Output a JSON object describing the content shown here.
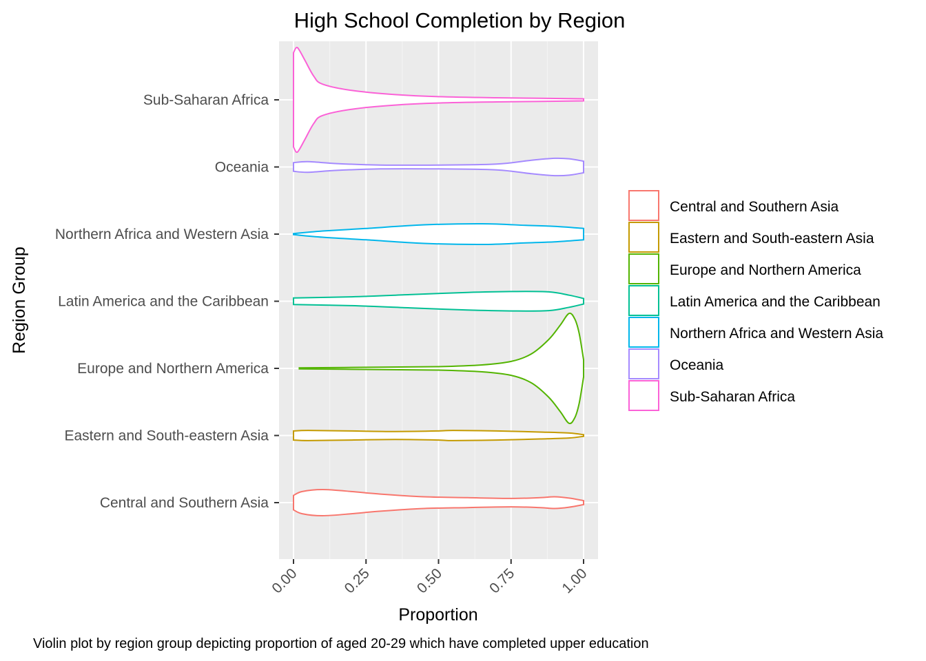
{
  "chart_data": {
    "type": "violin",
    "title": "High School Completion by Region",
    "xlabel": "Proportion",
    "ylabel": "Region Group",
    "caption": "Violin plot by region group depicting proportion of aged 20-29 which have completed upper education",
    "xlim": [
      -0.05,
      1.05
    ],
    "x_ticks": [
      "0.00",
      "0.25",
      "0.50",
      "0.75",
      "1.00"
    ],
    "x_tick_values": [
      0,
      0.25,
      0.5,
      0.75,
      1.0
    ],
    "categories": [
      "Central and Southern Asia",
      "Eastern and South-eastern Asia",
      "Europe and Northern America",
      "Latin America and the Caribbean",
      "Northern Africa and Western Asia",
      "Oceania",
      "Sub-Saharan Africa"
    ],
    "legend_position": "right",
    "grid": true,
    "series": [
      {
        "name": "Central and Southern Asia",
        "color": "#F8766D",
        "points": [
          [
            0.0,
            0.55
          ],
          [
            0.03,
            0.85
          ],
          [
            0.1,
            1.0
          ],
          [
            0.2,
            0.85
          ],
          [
            0.3,
            0.65
          ],
          [
            0.45,
            0.45
          ],
          [
            0.6,
            0.38
          ],
          [
            0.75,
            0.32
          ],
          [
            0.85,
            0.38
          ],
          [
            0.9,
            0.45
          ],
          [
            0.95,
            0.35
          ],
          [
            1.0,
            0.15
          ]
        ]
      },
      {
        "name": "Eastern and South-eastern Asia",
        "color": "#C49A00",
        "points": [
          [
            0.0,
            0.55
          ],
          [
            0.05,
            0.62
          ],
          [
            0.2,
            0.55
          ],
          [
            0.35,
            0.48
          ],
          [
            0.5,
            0.55
          ],
          [
            0.55,
            0.62
          ],
          [
            0.7,
            0.55
          ],
          [
            0.85,
            0.42
          ],
          [
            0.95,
            0.3
          ],
          [
            1.0,
            0.1
          ]
        ]
      },
      {
        "name": "Europe and Northern America",
        "color": "#53B400",
        "points": [
          [
            0.02,
            0.01
          ],
          [
            0.3,
            0.02
          ],
          [
            0.5,
            0.03
          ],
          [
            0.65,
            0.06
          ],
          [
            0.75,
            0.12
          ],
          [
            0.82,
            0.25
          ],
          [
            0.88,
            0.5
          ],
          [
            0.92,
            0.75
          ],
          [
            0.95,
            0.95
          ],
          [
            0.97,
            0.85
          ],
          [
            0.985,
            0.6
          ],
          [
            1.0,
            0.15
          ]
        ]
      },
      {
        "name": "Latin America and the Caribbean",
        "color": "#00C094",
        "points": [
          [
            0.0,
            0.3
          ],
          [
            0.2,
            0.4
          ],
          [
            0.4,
            0.6
          ],
          [
            0.6,
            0.8
          ],
          [
            0.75,
            0.88
          ],
          [
            0.88,
            0.85
          ],
          [
            0.95,
            0.55
          ],
          [
            1.0,
            0.25
          ]
        ]
      },
      {
        "name": "Northern Africa and Western Asia",
        "color": "#00B6EB",
        "points": [
          [
            0.0,
            0.05
          ],
          [
            0.1,
            0.3
          ],
          [
            0.25,
            0.55
          ],
          [
            0.45,
            0.9
          ],
          [
            0.65,
            1.0
          ],
          [
            0.8,
            0.85
          ],
          [
            0.9,
            0.75
          ],
          [
            1.0,
            0.55
          ]
        ]
      },
      {
        "name": "Oceania",
        "color": "#A58AFF",
        "points": [
          [
            0.0,
            0.45
          ],
          [
            0.05,
            0.55
          ],
          [
            0.15,
            0.35
          ],
          [
            0.3,
            0.2
          ],
          [
            0.5,
            0.2
          ],
          [
            0.7,
            0.3
          ],
          [
            0.82,
            0.7
          ],
          [
            0.9,
            0.9
          ],
          [
            0.95,
            0.85
          ],
          [
            1.0,
            0.6
          ]
        ]
      },
      {
        "name": "Sub-Saharan Africa",
        "color": "#FB61D7",
        "points": [
          [
            0.0,
            0.9
          ],
          [
            0.01,
            1.0
          ],
          [
            0.02,
            0.95
          ],
          [
            0.04,
            0.75
          ],
          [
            0.07,
            0.45
          ],
          [
            0.1,
            0.3
          ],
          [
            0.2,
            0.18
          ],
          [
            0.35,
            0.1
          ],
          [
            0.5,
            0.06
          ],
          [
            0.7,
            0.04
          ],
          [
            1.0,
            0.02
          ]
        ]
      }
    ]
  }
}
